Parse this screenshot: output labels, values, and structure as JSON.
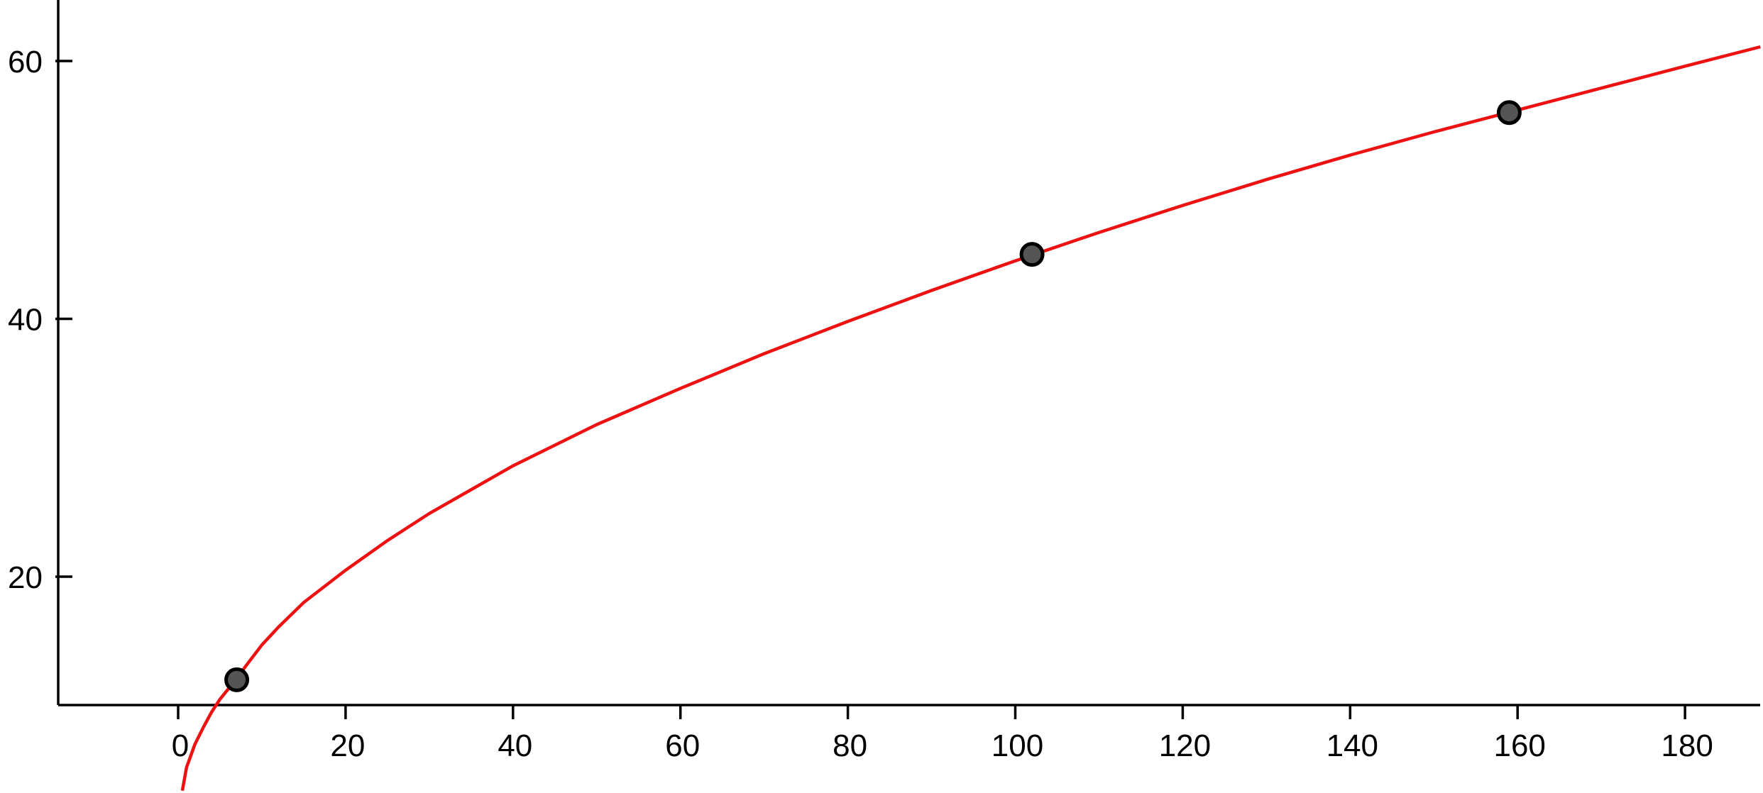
{
  "chart_data": {
    "type": "scatter",
    "title": "",
    "xlabel": "",
    "ylabel": "",
    "xlim": [
      -14,
      189
    ],
    "ylim": [
      10,
      65
    ],
    "x_ticks": [
      0,
      20,
      40,
      60,
      80,
      100,
      120,
      140,
      160,
      180
    ],
    "y_ticks": [
      20,
      40,
      60
    ],
    "x_tick_labels": [
      "0",
      "20",
      "40",
      "60",
      "80",
      "100",
      "120",
      "140",
      "160",
      "180"
    ],
    "y_tick_labels": [
      "20",
      "40",
      "60"
    ],
    "grid": false,
    "legend": "none",
    "points": [
      {
        "x": 7,
        "y": 12
      },
      {
        "x": 102,
        "y": 45
      },
      {
        "x": 159,
        "y": 56
      }
    ],
    "fit_curve": {
      "x": [
        0.5,
        1,
        2,
        3,
        4,
        5,
        6,
        7,
        8,
        10,
        12,
        15,
        20,
        25,
        30,
        40,
        50,
        60,
        70,
        80,
        90,
        100,
        110,
        120,
        130,
        140,
        150,
        160,
        170,
        180,
        189
      ],
      "y": [
        3.4,
        5.2,
        7.0,
        8.3,
        9.5,
        10.5,
        11.3,
        12.1,
        13.0,
        14.7,
        16.1,
        18.0,
        20.5,
        22.8,
        24.9,
        28.6,
        31.8,
        34.6,
        37.3,
        39.8,
        42.2,
        44.5,
        46.7,
        48.8,
        50.8,
        52.7,
        54.5,
        56.2,
        57.9,
        59.6,
        61.1
      ]
    },
    "colors": {
      "curve": "#ee1111",
      "point_fill": "#555555",
      "point_stroke": "#000000",
      "axis": "#000000"
    }
  }
}
